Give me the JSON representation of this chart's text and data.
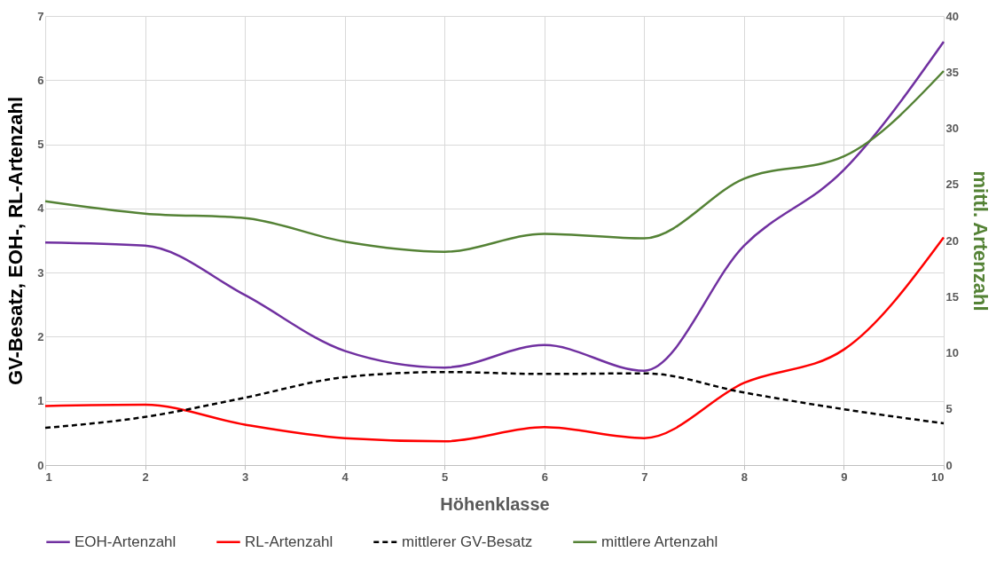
{
  "chart_data": {
    "type": "line",
    "xlabel": "Höhenklasse",
    "ylabel": "GV-Besatz, EOH-, RL-Artenzahl",
    "y2label": "mittl. Artenzahl",
    "x": [
      1,
      2,
      3,
      4,
      5,
      6,
      7,
      8,
      9,
      10
    ],
    "xlim": [
      1,
      10
    ],
    "xticks": [
      1,
      2,
      3,
      4,
      5,
      6,
      7,
      8,
      9,
      10
    ],
    "ylim": [
      0,
      7
    ],
    "yticks": [
      0,
      1,
      2,
      3,
      4,
      5,
      6,
      7
    ],
    "y2lim": [
      0,
      40
    ],
    "y2ticks": [
      0,
      5,
      10,
      15,
      20,
      25,
      30,
      35,
      40
    ],
    "grid": true,
    "legend": "bottom",
    "series": [
      {
        "name": "EOH-Artenzahl",
        "color": "#7030a0",
        "values": [
          3.47,
          3.42,
          2.65,
          1.78,
          1.52,
          1.87,
          1.47,
          3.42,
          4.6,
          6.6
        ]
      },
      {
        "name": "RL-Artenzahl",
        "color": "#ff0000",
        "values": [
          0.92,
          0.94,
          0.63,
          0.42,
          0.37,
          0.59,
          0.42,
          1.28,
          1.8,
          3.55
        ]
      },
      {
        "name": "mittlerer GV-Besatz",
        "color": "#000000",
        "line_style": "dashed",
        "values": [
          0.58,
          0.75,
          1.05,
          1.37,
          1.45,
          1.42,
          1.43,
          1.13,
          0.87,
          0.65
        ]
      },
      {
        "name": "mittlere Artenzahl",
        "color": "#548235",
        "axis": "y2",
        "values": [
          23.5,
          22.4,
          22.0,
          19.9,
          19.0,
          20.6,
          20.2,
          25.5,
          27.5,
          35.1
        ]
      }
    ]
  }
}
